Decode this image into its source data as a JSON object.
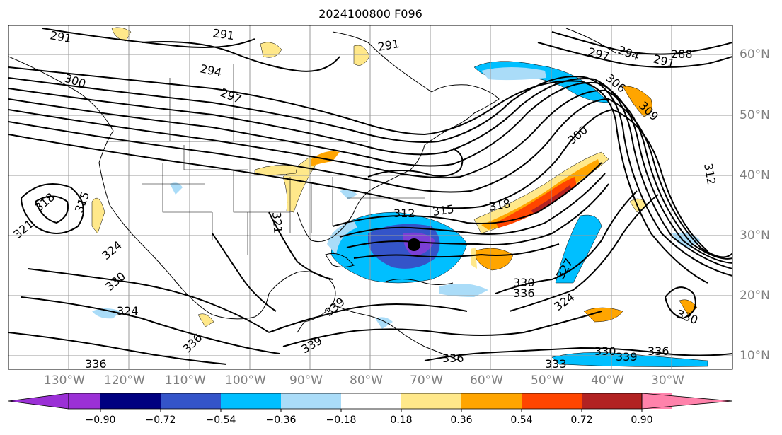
{
  "title": "2024100800 F096",
  "map": {
    "lat_labels": [
      "60°N",
      "50°N",
      "40°N",
      "30°N",
      "20°N",
      "10°N"
    ],
    "lon_labels": [
      "130°W",
      "120°W",
      "110°W",
      "100°W",
      "90°W",
      "80°W",
      "70°W",
      "60°W",
      "50°W",
      "40°W",
      "30°W"
    ],
    "contour_labels": [
      "291",
      "291",
      "291",
      "297",
      "294",
      "291",
      "288",
      "294",
      "297",
      "300",
      "306",
      "309",
      "300",
      "312",
      "315",
      "318",
      "321",
      "324",
      "330",
      "324",
      "321",
      "318",
      "315",
      "312",
      "327",
      "330",
      "336",
      "330",
      "339",
      "336",
      "330",
      "339",
      "336",
      "336",
      "333",
      "339",
      "336",
      "324"
    ],
    "storm_marker": "tropical-cyclone-center"
  },
  "colorbar": {
    "ticks": [
      "−0.90",
      "−0.72",
      "−0.54",
      "−0.36",
      "−0.18",
      "0.18",
      "0.36",
      "0.54",
      "0.72",
      "0.90"
    ],
    "colors": [
      "#9b30d6",
      "#000080",
      "#3454c9",
      "#00bfff",
      "#aadcf8",
      "#ffffff",
      "#ffe88a",
      "#ffa500",
      "#ff4500",
      "#b22222",
      "#ff82ab"
    ]
  }
}
